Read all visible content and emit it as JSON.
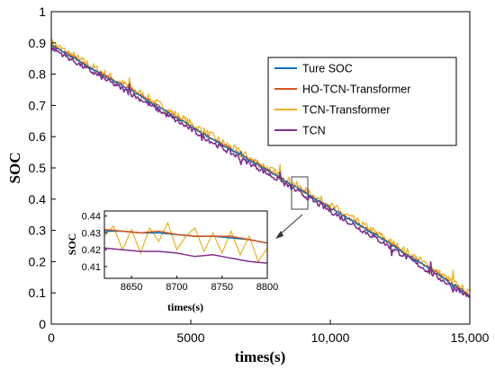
{
  "chart_data": {
    "type": "line",
    "xlabel": "times(s)",
    "ylabel": "SOC",
    "xlim": [
      0,
      15000
    ],
    "ylim": [
      0,
      1
    ],
    "x_ticks": [
      {
        "value": 0,
        "label": "0"
      },
      {
        "value": 5000,
        "label": "5000"
      },
      {
        "value": 10000,
        "label": "10,000"
      },
      {
        "value": 15000,
        "label": "15,000"
      }
    ],
    "y_ticks": [
      {
        "value": 0,
        "label": "0"
      },
      {
        "value": 0.1,
        "label": "0.1"
      },
      {
        "value": 0.2,
        "label": "0.2"
      },
      {
        "value": 0.3,
        "label": "0.3"
      },
      {
        "value": 0.4,
        "label": "0.4"
      },
      {
        "value": 0.5,
        "label": "0.5"
      },
      {
        "value": 0.6,
        "label": "0.6"
      },
      {
        "value": 0.7,
        "label": "0.7"
      },
      {
        "value": 0.8,
        "label": "0.8"
      },
      {
        "value": 0.9,
        "label": "0.9"
      },
      {
        "value": 1,
        "label": "1"
      }
    ],
    "grid": false,
    "legend_position": "top-right",
    "series": [
      {
        "name": "Ture SOC",
        "color": "#0072BD",
        "x": [
          0,
          1500,
          3000,
          4500,
          6000,
          7500,
          9000,
          10500,
          12000,
          13500,
          15000
        ],
        "y": [
          0.895,
          0.815,
          0.74,
          0.66,
          0.58,
          0.505,
          0.425,
          0.345,
          0.265,
          0.18,
          0.09
        ]
      },
      {
        "name": "HO-TCN-Transformer",
        "color": "#D95319",
        "x": [
          0,
          1500,
          3000,
          4500,
          6000,
          7500,
          9000,
          10500,
          12000,
          13500,
          15000
        ],
        "y": [
          0.897,
          0.817,
          0.742,
          0.662,
          0.582,
          0.507,
          0.427,
          0.347,
          0.267,
          0.182,
          0.092
        ]
      },
      {
        "name": "TCN-Transformer",
        "color": "#EDB120",
        "x": [
          0,
          1500,
          3000,
          4500,
          6000,
          7500,
          9000,
          10500,
          12000,
          13500,
          15000
        ],
        "y": [
          0.9,
          0.822,
          0.748,
          0.668,
          0.588,
          0.512,
          0.432,
          0.352,
          0.272,
          0.187,
          0.095
        ]
      },
      {
        "name": "TCN",
        "color": "#7E2F8E",
        "x": [
          0,
          1500,
          3000,
          4500,
          6000,
          7500,
          9000,
          10500,
          12000,
          13500,
          15000
        ],
        "y": [
          0.885,
          0.805,
          0.73,
          0.65,
          0.57,
          0.495,
          0.415,
          0.335,
          0.255,
          0.17,
          0.085
        ]
      }
    ],
    "inset": {
      "xlabel": "times(s)",
      "ylabel": "SOC",
      "xlim": [
        8620,
        8800
      ],
      "ylim": [
        0.403,
        0.443
      ],
      "x_ticks": [
        {
          "value": 8650,
          "label": "8650"
        },
        {
          "value": 8700,
          "label": "8700"
        },
        {
          "value": 8750,
          "label": "8750"
        },
        {
          "value": 8800,
          "label": "8800"
        }
      ],
      "y_ticks": [
        {
          "value": 0.41,
          "label": "0.41"
        },
        {
          "value": 0.42,
          "label": "0.42"
        },
        {
          "value": 0.43,
          "label": "0.43"
        },
        {
          "value": 0.44,
          "label": "0.44"
        }
      ],
      "series": [
        {
          "name": "Ture SOC",
          "color": "#0072BD",
          "x": [
            8620,
            8640,
            8660,
            8680,
            8700,
            8720,
            8740,
            8760,
            8780,
            8800
          ],
          "y": [
            0.431,
            0.431,
            0.43,
            0.43,
            0.429,
            0.428,
            0.428,
            0.427,
            0.426,
            0.424
          ]
        },
        {
          "name": "HO-TCN-Transformer",
          "color": "#D95319",
          "x": [
            8620,
            8640,
            8660,
            8680,
            8700,
            8720,
            8740,
            8760,
            8780,
            8800
          ],
          "y": [
            0.432,
            0.431,
            0.43,
            0.431,
            0.429,
            0.428,
            0.428,
            0.428,
            0.426,
            0.424
          ]
        },
        {
          "name": "TCN-Transformer",
          "color": "#EDB120",
          "x": [
            8620,
            8630,
            8640,
            8650,
            8660,
            8670,
            8680,
            8690,
            8700,
            8710,
            8720,
            8730,
            8740,
            8750,
            8760,
            8770,
            8780,
            8790,
            8800
          ],
          "y": [
            0.428,
            0.434,
            0.42,
            0.432,
            0.418,
            0.433,
            0.425,
            0.436,
            0.42,
            0.428,
            0.433,
            0.419,
            0.43,
            0.418,
            0.431,
            0.417,
            0.428,
            0.413,
            0.421
          ]
        },
        {
          "name": "TCN",
          "color": "#7E2F8E",
          "x": [
            8620,
            8640,
            8660,
            8680,
            8700,
            8720,
            8740,
            8760,
            8780,
            8800
          ],
          "y": [
            0.421,
            0.42,
            0.419,
            0.419,
            0.418,
            0.416,
            0.417,
            0.415,
            0.413,
            0.412
          ]
        }
      ]
    }
  }
}
